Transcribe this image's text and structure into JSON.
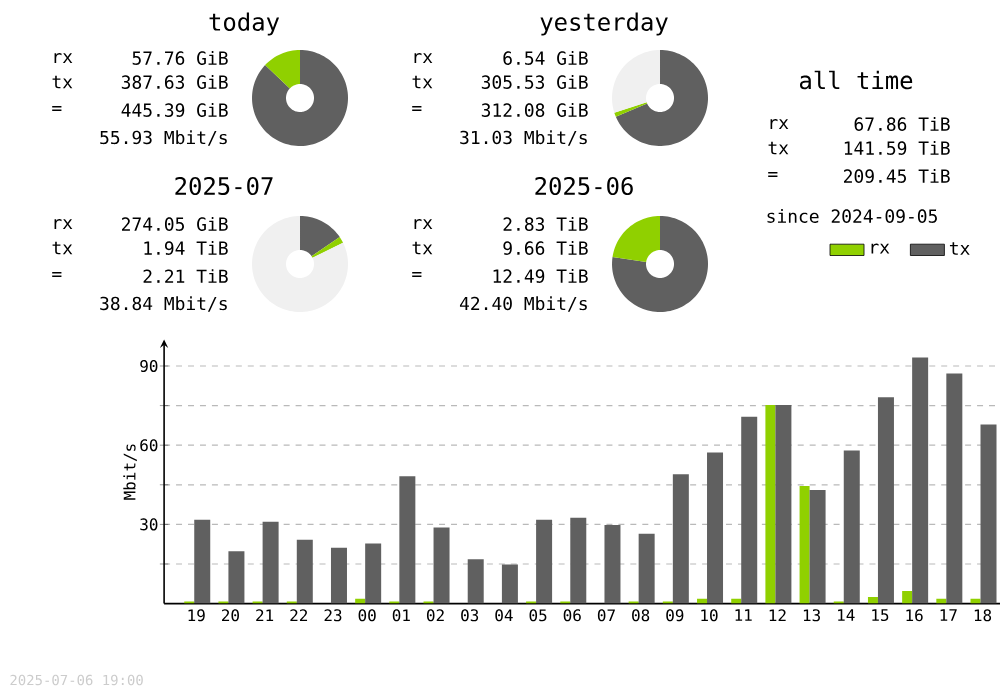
{
  "chart_data": [
    {
      "type": "donut",
      "title": "today",
      "categories": [
        null,
        null
      ],
      "values": [
        87.03,
        12.97
      ],
      "colors": [
        "#606060",
        "#90d000"
      ],
      "annotations": [
        "rx",
        "57.76 GiB",
        "tx",
        "387.63 GiB",
        "=",
        "445.39 GiB",
        "55.93 Mbit/s"
      ]
    },
    {
      "type": "donut",
      "title": "yesterday",
      "categories": [
        null,
        null,
        null
      ],
      "values": [
        68.6,
        1.47,
        29.93
      ],
      "colors": [
        "#606060",
        "#90d000",
        "#f0f0f0"
      ],
      "annotations": [
        "rx",
        "6.54 GiB",
        "tx",
        "305.53 GiB",
        "=",
        "312.08 GiB",
        "31.03 Mbit/s"
      ]
    },
    {
      "type": "other",
      "title": "all time",
      "annotations": [
        "rx",
        "67.86 TiB",
        "tx",
        "141.59 TiB",
        "=",
        "209.45 TiB",
        "since 2024-09-05"
      ]
    },
    {
      "type": "donut",
      "title": "2025-07",
      "categories": [
        null,
        null,
        null
      ],
      "values": [
        15.53,
        2.14,
        82.33
      ],
      "colors": [
        "#606060",
        "#90d000",
        "#f0f0f0"
      ],
      "annotations": [
        "rx",
        "274.05 GiB",
        "tx",
        "1.94 TiB",
        "=",
        "2.21 TiB",
        "38.84 Mbit/s"
      ]
    },
    {
      "type": "donut",
      "title": "2025-06",
      "categories": [
        null,
        null
      ],
      "values": [
        77.34,
        22.66
      ],
      "colors": [
        "#606060",
        "#90d000"
      ],
      "annotations": [
        "rx",
        "2.83 TiB",
        "tx",
        "9.66 TiB",
        "=",
        "12.49 TiB",
        "42.40 Mbit/s"
      ]
    },
    {
      "type": "bar",
      "ylabel": "Mbit/s",
      "categories": [
        "19",
        "20",
        "21",
        "22",
        "23",
        "00",
        "01",
        "02",
        "03",
        "04",
        "05",
        "06",
        "07",
        "08",
        "09",
        "10",
        "11",
        "12",
        "13",
        "14",
        "15",
        "16",
        "17",
        "18"
      ],
      "series": [
        {
          "name": "rx",
          "color": "#90d000",
          "values": [
            0.8,
            0.8,
            0.8,
            0.8,
            0,
            1.8,
            0.8,
            0.8,
            0,
            0,
            0.8,
            0.8,
            0,
            0.8,
            0.8,
            1.8,
            1.8,
            75.2,
            44.5,
            0.8,
            2.5,
            4.8,
            1.8,
            1.8
          ]
        },
        {
          "name": "tx",
          "color": "#606060",
          "values": [
            31.8,
            19.8,
            31,
            24.2,
            21.2,
            22.8,
            48.2,
            28.8,
            16.8,
            14.8,
            31.8,
            32.5,
            29.8,
            26.5,
            49,
            57.2,
            70.8,
            75.2,
            43,
            58,
            78.2,
            93.2,
            87.2,
            67.8
          ]
        }
      ],
      "ylim": [
        0,
        100
      ],
      "yticks": [
        {
          "value": 15,
          "label": null
        },
        30,
        {
          "value": 45,
          "label": null
        },
        60,
        {
          "value": 75,
          "label": null
        },
        90
      ],
      "grid": "y",
      "legend": "top right",
      "annotations": [
        "2025-07-06 19:00"
      ]
    }
  ]
}
